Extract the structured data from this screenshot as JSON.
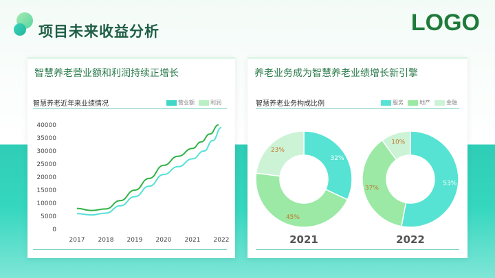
{
  "header": {
    "title": "项目未来收益分析",
    "logo": "LOGO"
  },
  "left_card": {
    "heading": "智慧养老营业额和利润持续正增长",
    "sub_title": "智慧养老近年来业绩情况",
    "legend": [
      {
        "label": "营业额",
        "color": "#3fd8c6"
      },
      {
        "label": "利润",
        "color": "#b8efc3"
      }
    ]
  },
  "right_card": {
    "heading": "养老业务成为智慧养老业绩增长新引擎",
    "sub_title": "智慧养老业务构成比例",
    "legend": [
      {
        "label": "服务",
        "color": "#56e3d3"
      },
      {
        "label": "地产",
        "color": "#9be9a4"
      },
      {
        "label": "金融",
        "color": "#cdf3d6"
      }
    ]
  },
  "colors": {
    "line_green": "#2fb244",
    "line_cyan": "#56e0d6",
    "pct_text": "#c0762a"
  },
  "chart_data": [
    {
      "type": "line",
      "x": [
        2017,
        2018,
        2019,
        2020,
        2021,
        2022
      ],
      "ylim": [
        0,
        40000
      ],
      "yticks": [
        0,
        5000,
        10000,
        15000,
        20000,
        25000,
        30000,
        35000,
        40000
      ],
      "series": [
        {
          "name": "营业额",
          "x": [
            2017,
            2017.5,
            2018,
            2018.5,
            2019,
            2019.5,
            2020,
            2020.5,
            2021,
            2021.3,
            2021.6,
            2021.9
          ],
          "values": [
            8000,
            7200,
            7800,
            11000,
            15000,
            19500,
            24500,
            28000,
            31000,
            33500,
            36500,
            40000
          ],
          "color": "#2fb244"
        },
        {
          "name": "利润",
          "x": [
            2017,
            2017.5,
            2018,
            2018.5,
            2019,
            2019.5,
            2020,
            2020.5,
            2021,
            2021.4,
            2021.7,
            2022
          ],
          "values": [
            6000,
            5500,
            6200,
            9000,
            12500,
            16500,
            21000,
            24000,
            27000,
            30000,
            34000,
            39000
          ],
          "color": "#56e0d6"
        }
      ]
    },
    {
      "type": "pie",
      "title": "2021",
      "labels": [
        "服务",
        "地产",
        "金融"
      ],
      "values": [
        32,
        45,
        23
      ],
      "pct_labels": [
        "32%",
        "45%",
        "23%"
      ],
      "colors": [
        "#56e3d3",
        "#9be9a4",
        "#cdf3d6"
      ]
    },
    {
      "type": "pie",
      "title": "2022",
      "labels": [
        "服务",
        "地产",
        "金融"
      ],
      "values": [
        53,
        37,
        10
      ],
      "pct_labels": [
        "53%",
        "37%",
        "10%"
      ],
      "colors": [
        "#56e3d3",
        "#9be9a4",
        "#cdf3d6"
      ]
    }
  ]
}
